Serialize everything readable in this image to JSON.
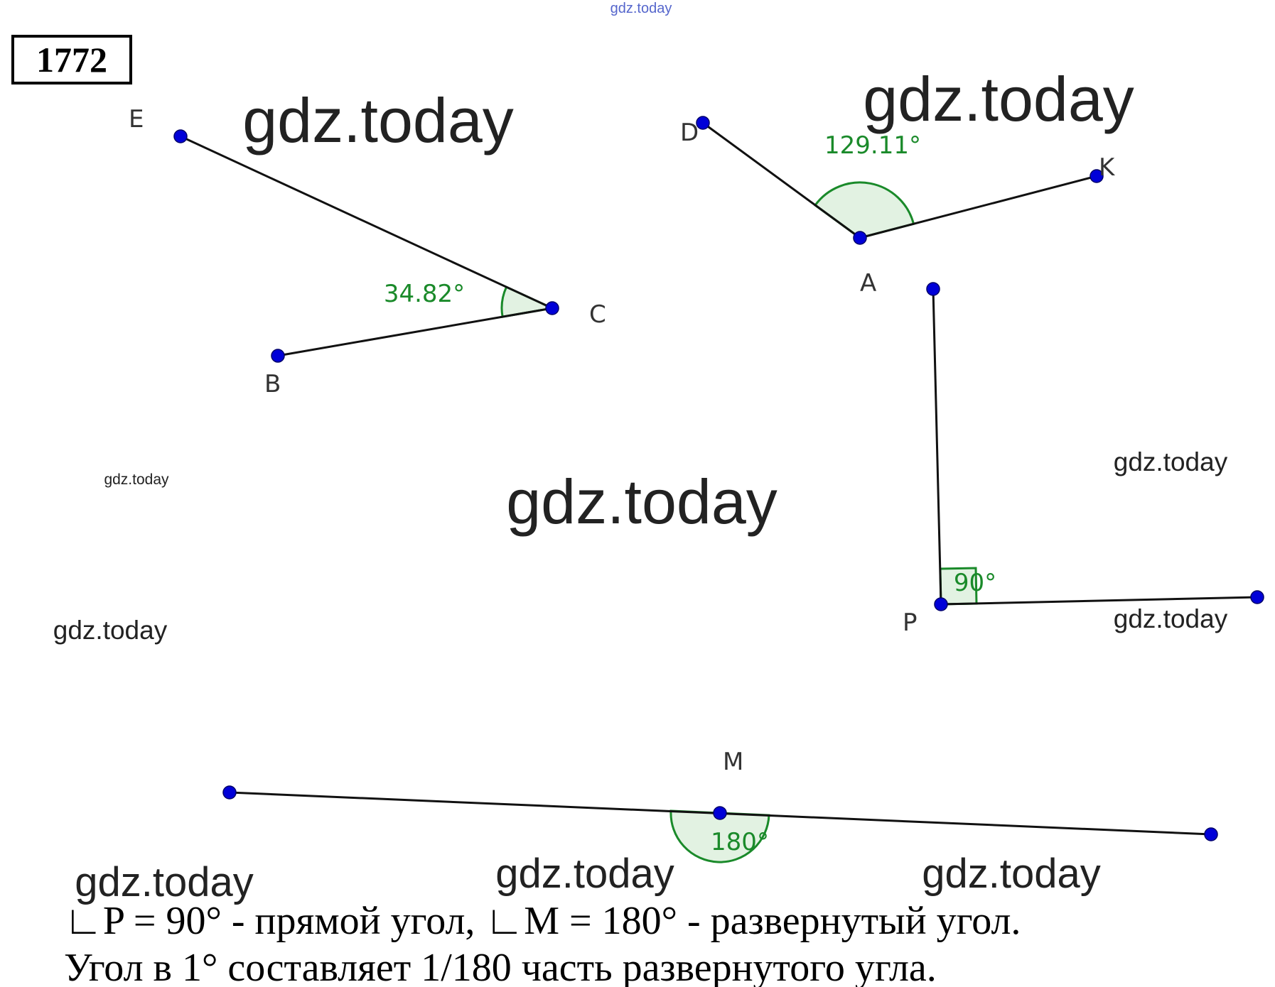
{
  "problem_number": "1772",
  "watermarks": [
    "gdz.today",
    "gdz.today",
    "gdz.today",
    "gdz.today",
    "gdz.today",
    "gdz.today",
    "gdz.today",
    "gdz.today",
    "gdz.today",
    "gdz.today",
    "gdz.today"
  ],
  "points": {
    "E": "E",
    "C": "C",
    "B": "B",
    "D": "D",
    "K": "K",
    "A": "A",
    "P": "P",
    "M": "M"
  },
  "angles": {
    "ECB": "34.82°",
    "DAK": "129.11°",
    "P": "90°",
    "M": "180°"
  },
  "text": {
    "line1": "∟P = 90° - прямой угол, ∟M = 180° - развернутый угол.",
    "line2": "Угол в 1° составляет 1/180 часть развернутого угла."
  }
}
